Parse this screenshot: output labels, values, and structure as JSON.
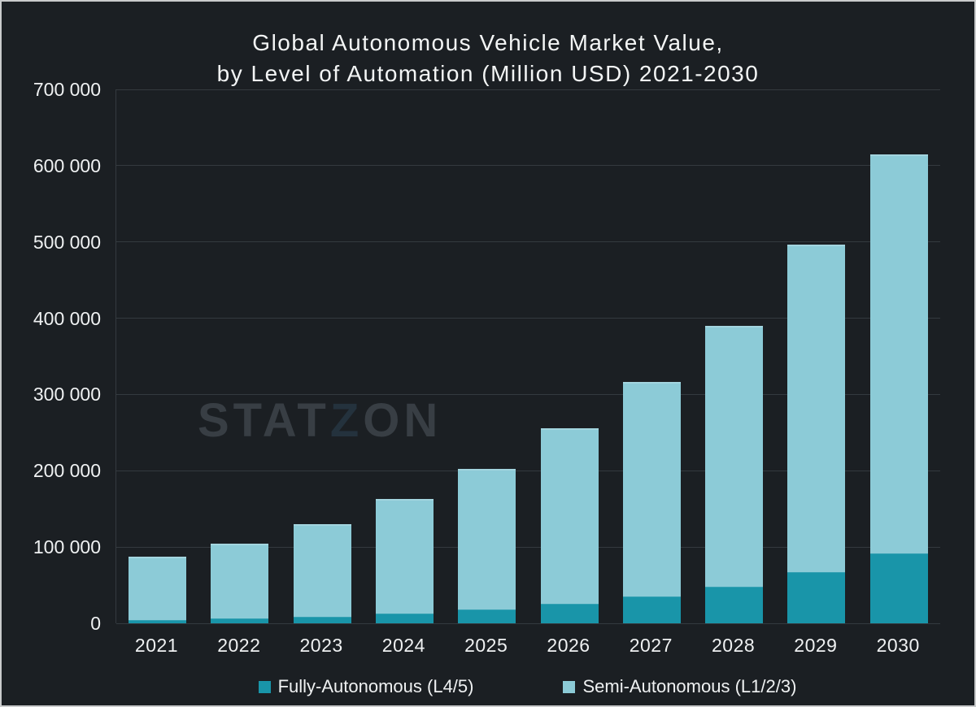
{
  "frame": {
    "background_color": "#1b1f23",
    "border_color": "#c9cbcc",
    "gridline_color": "#343a3f",
    "text_color": "#eff1f2"
  },
  "title": {
    "line1": "Global Autonomous Vehicle Market Value,",
    "line2": "by Level of Automation (Million USD) 2021-2030"
  },
  "watermark": {
    "part1": "STAT",
    "part2": "Z",
    "part3": "ON"
  },
  "legend": [
    {
      "label": "Fully-Autonomous (L4/5)",
      "color": "#1995a9"
    },
    {
      "label": "Semi-Autonomous (L1/2/3)",
      "color": "#8ccbd7"
    }
  ],
  "chart_data": {
    "type": "bar",
    "stacked": true,
    "title": "Global Autonomous Vehicle Market Value, by Level of Automation (Million USD) 2021-2030",
    "categories": [
      "2021",
      "2022",
      "2023",
      "2024",
      "2025",
      "2026",
      "2027",
      "2028",
      "2029",
      "2030"
    ],
    "series": [
      {
        "name": "Fully-Autonomous (L4/5)",
        "color": "#1995a9",
        "values": [
          4800,
          6400,
          8500,
          12800,
          18100,
          25600,
          35200,
          47900,
          67100,
          91600
        ]
      },
      {
        "name": "Semi-Autonomous (L1/2/3)",
        "color": "#8ccbd7",
        "values": [
          82600,
          98000,
          121500,
          150200,
          184300,
          230100,
          281200,
          342100,
          429400,
          523100
        ]
      }
    ],
    "totals": [
      87400,
      104400,
      130000,
      163000,
      202400,
      255700,
      316400,
      390000,
      496500,
      614700
    ],
    "ylabel": "",
    "xlabel": "",
    "ylim": [
      0,
      700000
    ],
    "ytick_step": 100000,
    "ytick_labels": [
      "0",
      "100 000",
      "200 000",
      "300 000",
      "400 000",
      "500 000",
      "600 000",
      "700 000"
    ],
    "grid": true,
    "legend_position": "bottom"
  }
}
